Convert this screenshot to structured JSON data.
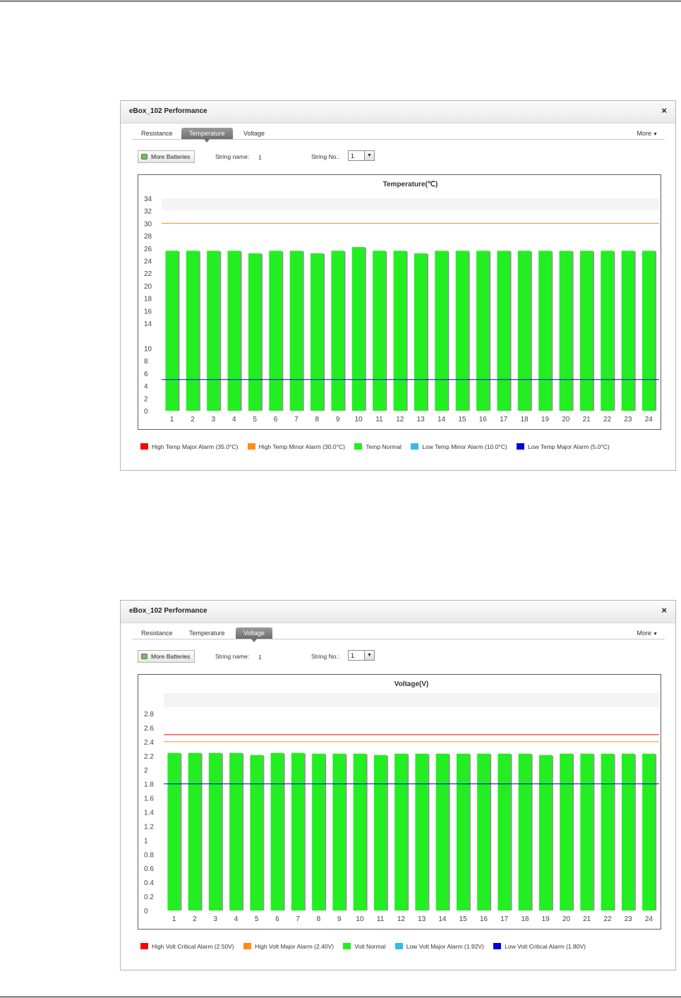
{
  "panels": [
    {
      "title": "eBox_102 Performance",
      "close_glyph": "×",
      "tabs": [
        {
          "label": "Resistance",
          "active": false
        },
        {
          "label": "Temperature",
          "active": true
        },
        {
          "label": "Voltage",
          "active": false
        }
      ],
      "more_label": "More",
      "more_batteries_label": "More Batteries",
      "string_name_label": "String name:",
      "string_name_value": "1",
      "string_no_label": "String No.:",
      "string_no_value": "1",
      "legend": [
        {
          "label": "High Temp Major Alarm  (35.0°C)",
          "color": "#ff0000"
        },
        {
          "label": "High Temp Minor Alarm  (30.0°C)",
          "color": "#ff8c1a"
        },
        {
          "label": "Temp Normal",
          "color": "#22ee22"
        },
        {
          "label": "Low Temp Minor Alarm  (10.0°C)",
          "color": "#33bbee"
        },
        {
          "label": "Low Temp Major Alarm  (5.0°C)",
          "color": "#0000dd"
        }
      ]
    },
    {
      "title": "eBox_102 Performance",
      "close_glyph": "×",
      "tabs": [
        {
          "label": "Resistance",
          "active": false
        },
        {
          "label": "Temperature",
          "active": false
        },
        {
          "label": "Voltage",
          "active": true
        }
      ],
      "more_label": "More",
      "more_batteries_label": "More Batteries",
      "string_name_label": "String name:",
      "string_name_value": "1",
      "string_no_label": "String No.:",
      "string_no_value": "1",
      "legend": [
        {
          "label": "High Volt Critical Alarm  (2.50V)",
          "color": "#ff0000"
        },
        {
          "label": "High Volt Major Alarm  (2.40V)",
          "color": "#ff8c1a"
        },
        {
          "label": "Volt Normal",
          "color": "#22ee22"
        },
        {
          "label": "Low Volt Major Alarm  (1.92V)",
          "color": "#33bbee"
        },
        {
          "label": "Low Volt Critical Alarm  (1.80V)",
          "color": "#0000dd"
        }
      ]
    }
  ],
  "chart_data": [
    {
      "type": "bar",
      "title": "Temperature(℃)",
      "categories": [
        "1",
        "2",
        "3",
        "4",
        "5",
        "6",
        "7",
        "8",
        "9",
        "10",
        "11",
        "12",
        "13",
        "14",
        "15",
        "16",
        "17",
        "18",
        "19",
        "20",
        "21",
        "22",
        "23",
        "24"
      ],
      "values": [
        25.6,
        25.6,
        25.6,
        25.6,
        25.2,
        25.6,
        25.6,
        25.2,
        25.6,
        26.2,
        25.6,
        25.6,
        25.2,
        25.6,
        25.6,
        25.6,
        25.6,
        25.6,
        25.6,
        25.6,
        25.6,
        25.6,
        25.6,
        25.6
      ],
      "yticks": [
        "0",
        "2",
        "4",
        "6",
        "8",
        "10",
        "14",
        "16",
        "18",
        "20",
        "22",
        "24",
        "26",
        "28",
        "30",
        "32",
        "34"
      ],
      "ylim": [
        0,
        34
      ],
      "bar_color": "#22ee22",
      "threshold_lines": [
        {
          "value": 30,
          "color": "#ff8c1a"
        },
        {
          "value": 5,
          "color": "#0000dd"
        }
      ],
      "grid": false,
      "legend_position": "bottom"
    },
    {
      "type": "bar",
      "title": "Voltage(V)",
      "categories": [
        "1",
        "2",
        "3",
        "4",
        "5",
        "6",
        "7",
        "8",
        "9",
        "10",
        "11",
        "12",
        "13",
        "14",
        "15",
        "16",
        "17",
        "18",
        "19",
        "20",
        "21",
        "22",
        "23",
        "24"
      ],
      "values": [
        2.24,
        2.24,
        2.24,
        2.24,
        2.21,
        2.24,
        2.24,
        2.23,
        2.23,
        2.23,
        2.21,
        2.23,
        2.23,
        2.23,
        2.23,
        2.23,
        2.23,
        2.23,
        2.21,
        2.23,
        2.23,
        2.23,
        2.23,
        2.23
      ],
      "yticks": [
        "0",
        "0.2",
        "0.4",
        "0.6",
        "0.8",
        "1",
        "1.2",
        "1.4",
        "1.6",
        "1.8",
        "2",
        "2.2",
        "2.4",
        "2.6",
        "2.8"
      ],
      "ylim": [
        0,
        2.9
      ],
      "bar_color": "#22ee22",
      "threshold_lines": [
        {
          "value": 2.5,
          "color": "#ff0000"
        },
        {
          "value": 2.4,
          "color": "#ff8c1a"
        },
        {
          "value": 1.8,
          "color": "#0000dd"
        }
      ],
      "grid": false,
      "legend_position": "bottom"
    }
  ]
}
